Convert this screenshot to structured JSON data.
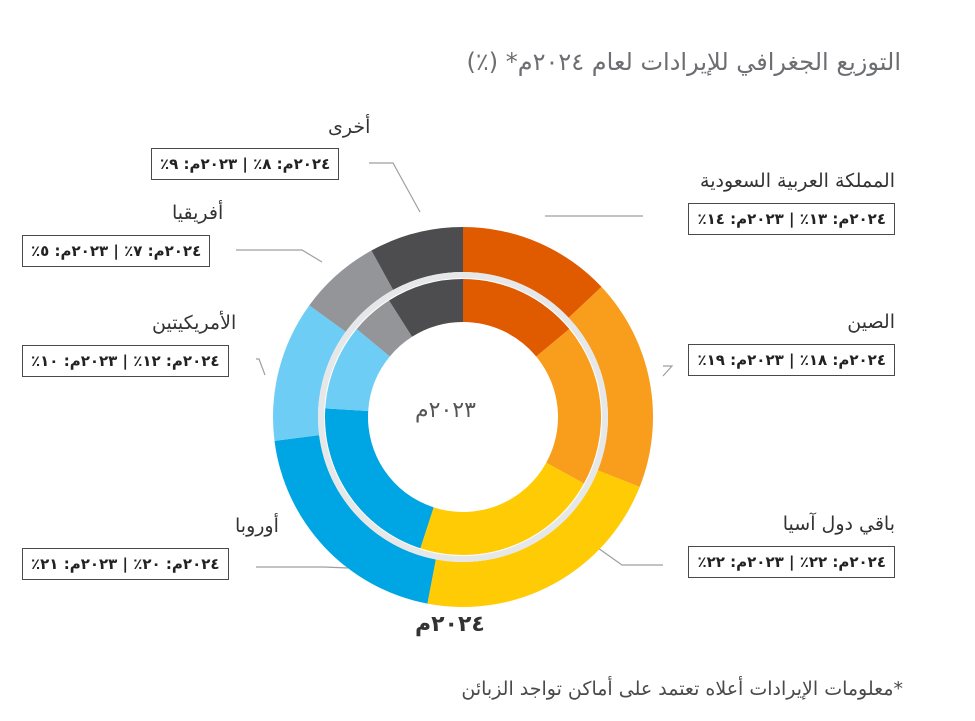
{
  "title": "التوزيع الجغرافي للإيرادات لعام ٢٠٢٤م* (٪)",
  "footnote": "*معلومات الإيرادات أعلاه تعتمد على أماكن تواجد الزبائن",
  "chart_data": {
    "type": "pie",
    "variant": "nested-donut",
    "rings": [
      {
        "name": "٢٠٢٤م",
        "position": "outer"
      },
      {
        "name": "٢٠٢٣م",
        "position": "inner"
      }
    ],
    "categories": [
      "المملكة العربية السعودية",
      "الصين",
      "باقي دول آسيا",
      "أوروبا",
      "الأمريكيتين",
      "أفريقيا",
      "أخرى"
    ],
    "series": [
      {
        "name": "٢٠٢٤م",
        "values": [
          13,
          18,
          22,
          20,
          12,
          7,
          8
        ]
      },
      {
        "name": "٢٠٢٣م",
        "values": [
          14,
          19,
          22,
          21,
          10,
          5,
          9
        ]
      }
    ],
    "colors": [
      "#e05a00",
      "#f99d1c",
      "#ffcb05",
      "#00a5e3",
      "#6ecdf5",
      "#939598",
      "#4d4d4f"
    ],
    "labels": [
      {
        "name": "المملكة العربية السعودية",
        "text": "٢٠٢٤م: ١٣٪ | ٢٠٢٣م: ١٤٪"
      },
      {
        "name": "الصين",
        "text": "٢٠٢٤م: ١٨٪ | ٢٠٢٣م: ١٩٪"
      },
      {
        "name": "باقي دول آسيا",
        "text": "٢٠٢٤م: ٢٢٪ | ٢٠٢٣م: ٢٢٪"
      },
      {
        "name": "أوروبا",
        "text": "٢٠٢٤م: ٢٠٪ | ٢٠٢٣م: ٢١٪"
      },
      {
        "name": "الأمريكيتين",
        "text": "٢٠٢٤م: ١٢٪ | ٢٠٢٣م: ١٠٪"
      },
      {
        "name": "أفريقيا",
        "text": "٢٠٢٤م: ٧٪ | ٢٠٢٣م: ٥٪"
      },
      {
        "name": "أخرى",
        "text": "٢٠٢٤م: ٨٪ | ٢٠٢٣م: ٩٪"
      }
    ]
  }
}
